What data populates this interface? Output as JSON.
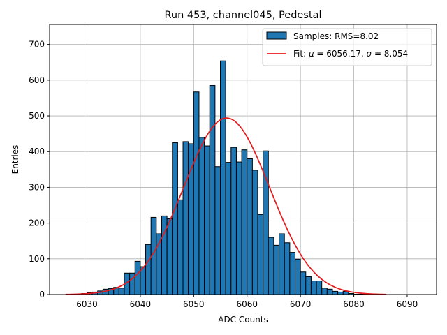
{
  "chart_data": {
    "type": "bar",
    "title": "Run 453, channel045, Pedestal",
    "xlabel": "ADC Counts",
    "ylabel": "Entries",
    "xlim": [
      6023.0,
      6095.5
    ],
    "ylim": [
      0,
      756
    ],
    "xticks": [
      6030,
      6040,
      6050,
      6060,
      6070,
      6080,
      6090
    ],
    "yticks": [
      0,
      100,
      200,
      300,
      400,
      500,
      600,
      700
    ],
    "grid": true,
    "legend_position": "top-right",
    "histogram": {
      "name": "Samples: RMS=8.02",
      "bin_start": 6026,
      "bin_width": 1,
      "counts": [
        0,
        1,
        1,
        3,
        5,
        7,
        10,
        15,
        17,
        20,
        18,
        60,
        60,
        93,
        78,
        140,
        216,
        170,
        220,
        212,
        425,
        265,
        428,
        422,
        567,
        440,
        416,
        585,
        358,
        654,
        370,
        412,
        371,
        405,
        380,
        348,
        224,
        402,
        160,
        138,
        170,
        145,
        118,
        99,
        63,
        50,
        38,
        38,
        18,
        15,
        9,
        7,
        9,
        3,
        1,
        1,
        1,
        1,
        1,
        1
      ],
      "color": "#1f77b4",
      "edge_color": "#000000"
    },
    "fit": {
      "name_prefix": "Fit: ",
      "mu_symbol": "μ",
      "mu_text": " = 6056.17, ",
      "sigma_symbol": "σ",
      "sigma_text": " = 8.054",
      "mu": 6056.17,
      "sigma": 8.054,
      "amplitude": 494,
      "x_range": [
        6026,
        6086
      ],
      "color": "#e41a1c"
    }
  }
}
